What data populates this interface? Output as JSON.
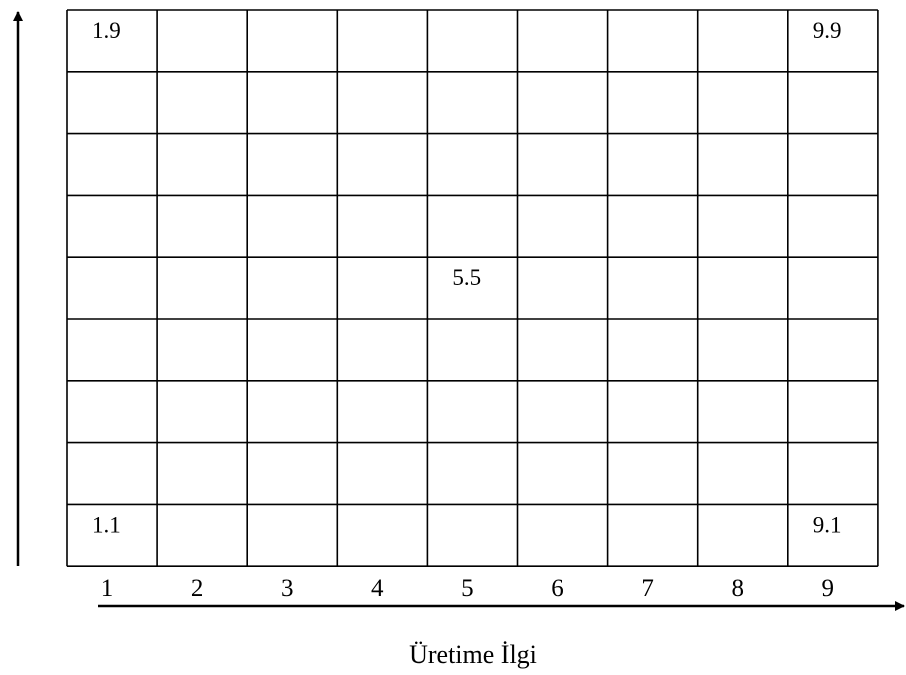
{
  "diagram": {
    "columns": 9,
    "rows": 9,
    "x_ticks": [
      "1",
      "2",
      "3",
      "4",
      "5",
      "6",
      "7",
      "8",
      "9"
    ],
    "x_axis_title": "Üretime İlgi",
    "line_color": "#000000",
    "background": "#ffffff",
    "cells": [
      {
        "col": 1,
        "row": 9,
        "label": "1.9"
      },
      {
        "col": 9,
        "row": 9,
        "label": "9.9"
      },
      {
        "col": 5,
        "row": 5,
        "label": "5.5"
      },
      {
        "col": 1,
        "row": 1,
        "label": "1.1"
      },
      {
        "col": 9,
        "row": 1,
        "label": "9.1"
      }
    ]
  }
}
